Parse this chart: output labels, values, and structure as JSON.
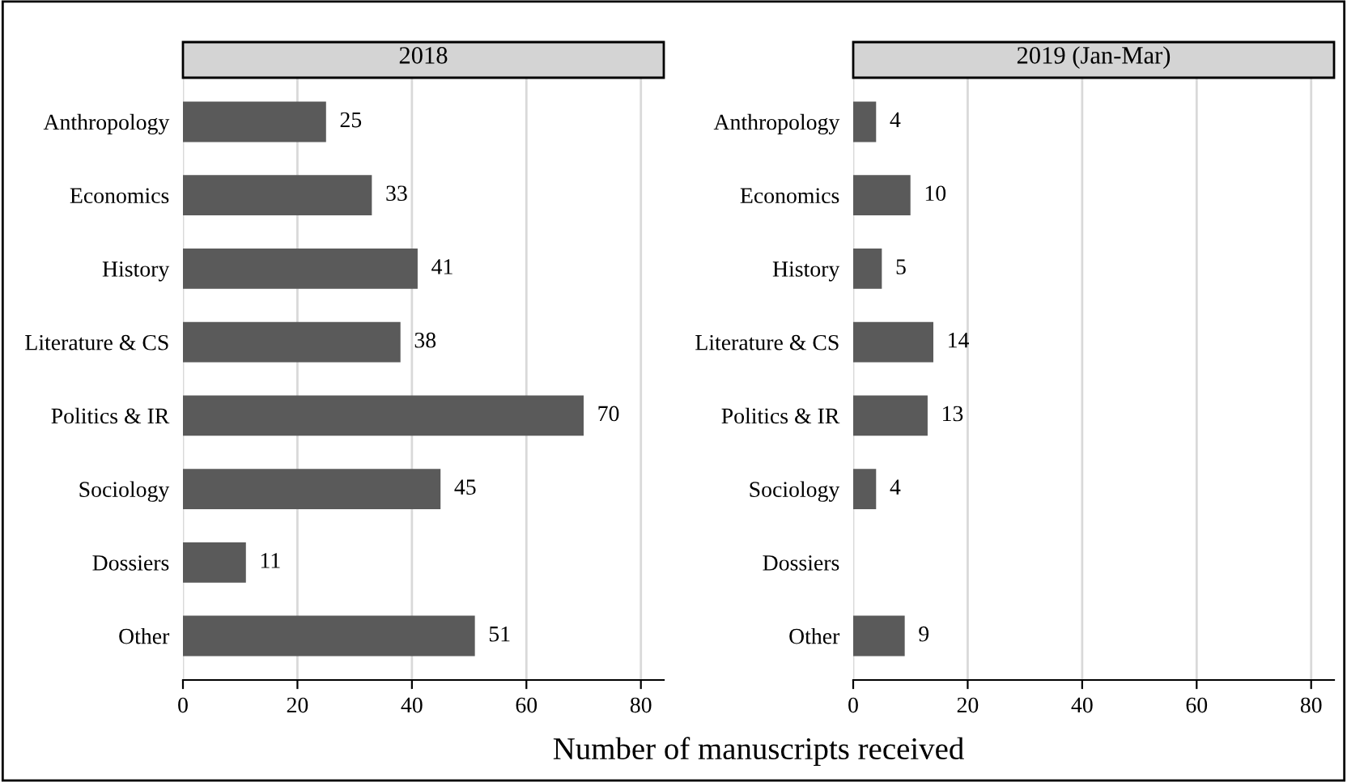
{
  "chart_data": [
    {
      "type": "bar",
      "orientation": "horizontal",
      "title": "2018",
      "xlabel": "Number of manuscripts received",
      "categories": [
        "Anthropology",
        "Economics",
        "History",
        "Literature & CS",
        "Politics & IR",
        "Sociology",
        "Dossiers",
        "Other"
      ],
      "values": [
        25,
        33,
        41,
        38,
        70,
        45,
        11,
        51
      ],
      "color": "#5a5a5a",
      "xlim": [
        0,
        84
      ],
      "xticks": [
        0,
        20,
        40,
        60,
        80
      ],
      "grid": "x",
      "data_labels": true,
      "legend": false
    },
    {
      "type": "bar",
      "orientation": "horizontal",
      "title": "2019 (Jan-Mar)",
      "categories": [
        "Anthropology",
        "Economics",
        "History",
        "Literature & CS",
        "Politics & IR",
        "Sociology",
        "Dossiers",
        "Other"
      ],
      "values": [
        4,
        10,
        5,
        14,
        13,
        4,
        null,
        9
      ],
      "color": "#5a5a5a",
      "xlim": [
        0,
        84
      ],
      "xticks": [
        0,
        20,
        40,
        60,
        80
      ],
      "grid": "x",
      "data_labels": true,
      "legend": false
    }
  ]
}
